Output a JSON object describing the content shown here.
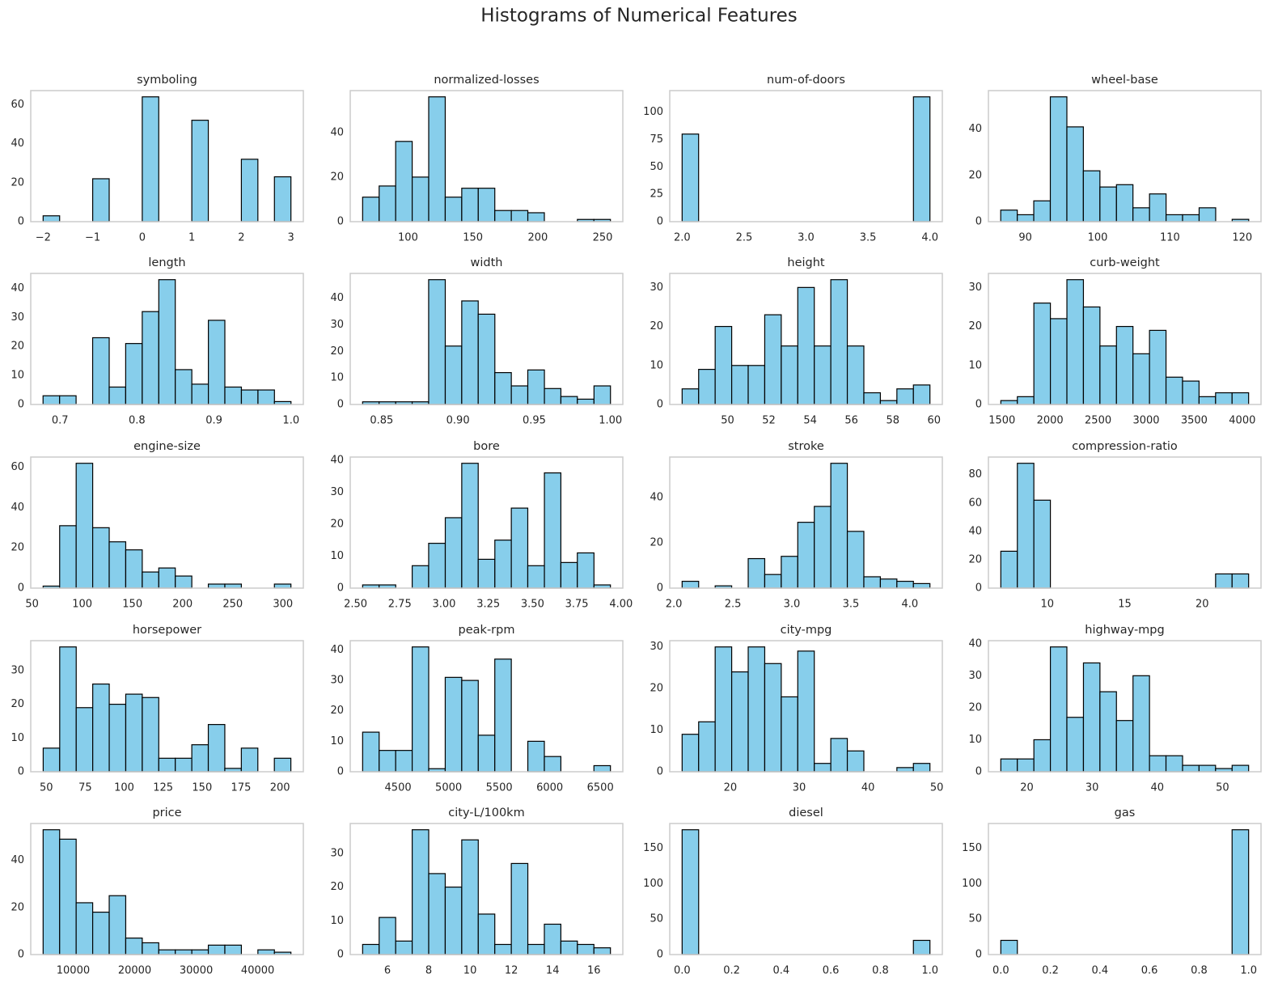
{
  "title": "Histograms of Numerical Features",
  "chart_data": [
    {
      "type": "histogram",
      "title": "symboling",
      "color": "#87ceeb",
      "edgecolor": "#000000",
      "bins": [
        -2,
        -1.667,
        -1.333,
        -1,
        -0.667,
        -0.333,
        0,
        0.333,
        0.667,
        1,
        1.333,
        1.667,
        2,
        2.333,
        2.667,
        3
      ],
      "values": [
        3,
        0,
        0,
        22,
        0,
        0,
        64,
        0,
        0,
        52,
        0,
        0,
        32,
        0,
        23
      ],
      "xlim": [
        -2.25,
        3.25
      ],
      "ylim": [
        0,
        67.2
      ],
      "xticks": [
        {
          "value": -2,
          "label": "−2"
        },
        {
          "value": -1,
          "label": "−1"
        },
        0,
        1,
        2,
        3
      ],
      "yticks": [
        0,
        20,
        40,
        60
      ]
    },
    {
      "type": "histogram",
      "title": "normalized-losses",
      "color": "#87ceeb",
      "edgecolor": "#000000",
      "bins": [
        65,
        77.73,
        90.47,
        103.2,
        115.93,
        128.67,
        141.4,
        154.13,
        166.87,
        179.6,
        192.33,
        205.07,
        217.8,
        230.53,
        243.27,
        256
      ],
      "values": [
        11,
        16,
        36,
        20,
        56,
        11,
        15,
        15,
        5,
        5,
        4,
        0,
        0,
        1,
        1
      ],
      "xlim": [
        55.45,
        265.55
      ],
      "ylim": [
        0,
        58.8
      ],
      "xticks": [
        100,
        150,
        200,
        250
      ],
      "yticks": [
        0,
        20,
        40
      ]
    },
    {
      "type": "histogram",
      "title": "num-of-doors",
      "color": "#87ceeb",
      "edgecolor": "#000000",
      "bins": [
        2,
        2.133,
        2.267,
        2.4,
        2.533,
        2.667,
        2.8,
        2.933,
        3.067,
        3.2,
        3.333,
        3.467,
        3.6,
        3.733,
        3.867,
        4
      ],
      "values": [
        80,
        0,
        0,
        0,
        0,
        0,
        0,
        0,
        0,
        0,
        0,
        0,
        0,
        0,
        114
      ],
      "xlim": [
        1.9,
        4.1
      ],
      "ylim": [
        0,
        119.7
      ],
      "xticks": [
        {
          "value": 2,
          "label": "2.0"
        },
        2.5,
        {
          "value": 3,
          "label": "3.0"
        },
        3.5,
        {
          "value": 4,
          "label": "4.0"
        }
      ],
      "yticks": [
        0,
        25,
        50,
        75,
        100
      ]
    },
    {
      "type": "histogram",
      "title": "wheel-base",
      "color": "#87ceeb",
      "edgecolor": "#000000",
      "bins": [
        86.6,
        88.89,
        91.17,
        93.46,
        95.75,
        98.03,
        100.32,
        102.61,
        104.89,
        107.18,
        109.47,
        111.75,
        114.04,
        116.33,
        118.61,
        120.9
      ],
      "values": [
        5,
        3,
        9,
        54,
        41,
        22,
        15,
        16,
        6,
        12,
        3,
        3,
        6,
        0,
        1
      ],
      "xlim": [
        84.9,
        122.6
      ],
      "ylim": [
        0,
        56.7
      ],
      "xticks": [
        90,
        100,
        110,
        120
      ],
      "yticks": [
        0,
        20,
        40
      ]
    },
    {
      "type": "histogram",
      "title": "length",
      "color": "#87ceeb",
      "edgecolor": "#000000",
      "bins": [
        0.678,
        0.6995,
        0.7209,
        0.7424,
        0.7639,
        0.7853,
        0.8068,
        0.8283,
        0.8497,
        0.8712,
        0.8927,
        0.9141,
        0.9356,
        0.9571,
        0.9785,
        1
      ],
      "values": [
        3,
        3,
        0,
        23,
        6,
        21,
        32,
        43,
        12,
        7,
        29,
        6,
        5,
        5,
        1
      ],
      "xlim": [
        0.662,
        1.016
      ],
      "ylim": [
        0,
        45.15
      ],
      "xticks": [
        0.7,
        0.8,
        0.9,
        {
          "value": 1,
          "label": "1.0"
        }
      ],
      "yticks": [
        0,
        10,
        20,
        30,
        40
      ]
    },
    {
      "type": "histogram",
      "title": "width",
      "color": "#87ceeb",
      "edgecolor": "#000000",
      "bins": [
        0.8375,
        0.8483,
        0.8592,
        0.87,
        0.8808,
        0.8917,
        0.9025,
        0.9133,
        0.9242,
        0.935,
        0.9458,
        0.9567,
        0.9675,
        0.9783,
        0.9892,
        1
      ],
      "values": [
        1,
        1,
        1,
        1,
        47,
        22,
        39,
        34,
        12,
        7,
        13,
        6,
        3,
        2,
        7
      ],
      "xlim": [
        0.8294,
        1.0081
      ],
      "ylim": [
        0,
        49.35
      ],
      "xticks": [
        0.85,
        {
          "value": 0.9,
          "label": "0.90"
        },
        0.95,
        {
          "value": 1,
          "label": "1.00"
        }
      ],
      "yticks": [
        0,
        10,
        20,
        30,
        40
      ]
    },
    {
      "type": "histogram",
      "title": "height",
      "color": "#87ceeb",
      "edgecolor": "#000000",
      "bins": [
        47.8,
        48.6,
        49.4,
        50.2,
        51,
        51.8,
        52.6,
        53.4,
        54.2,
        55,
        55.8,
        56.6,
        57.4,
        58.2,
        59,
        59.8
      ],
      "values": [
        4,
        9,
        20,
        10,
        10,
        23,
        15,
        30,
        15,
        32,
        15,
        3,
        1,
        4,
        5
      ],
      "xlim": [
        47.2,
        60.4
      ],
      "ylim": [
        0,
        33.6
      ],
      "xticks": [
        50,
        52,
        54,
        56,
        58,
        60
      ],
      "yticks": [
        0,
        10,
        20,
        30
      ]
    },
    {
      "type": "histogram",
      "title": "curb-weight",
      "color": "#87ceeb",
      "edgecolor": "#000000",
      "bins": [
        1488,
        1659.9,
        1831.7,
        2003.6,
        2175.5,
        2347.3,
        2519.2,
        2691.1,
        2862.9,
        3034.8,
        3206.7,
        3378.5,
        3550.4,
        3722.3,
        3894.1,
        4066
      ],
      "values": [
        1,
        2,
        26,
        22,
        32,
        25,
        15,
        20,
        13,
        19,
        7,
        6,
        2,
        3,
        3
      ],
      "xlim": [
        1359,
        4195
      ],
      "ylim": [
        0,
        33.6
      ],
      "xticks": [
        1500,
        2000,
        2500,
        3000,
        3500,
        4000
      ],
      "yticks": [
        0,
        10,
        20,
        30
      ]
    },
    {
      "type": "histogram",
      "title": "engine-size",
      "color": "#87ceeb",
      "edgecolor": "#000000",
      "bins": [
        61,
        77.47,
        93.93,
        110.4,
        126.87,
        143.33,
        159.8,
        176.27,
        192.73,
        209.2,
        225.67,
        242.13,
        258.6,
        275.07,
        291.53,
        308
      ],
      "values": [
        1,
        31,
        62,
        30,
        23,
        19,
        8,
        10,
        6,
        0,
        2,
        2,
        0,
        0,
        2
      ],
      "xlim": [
        48.65,
        320.35
      ],
      "ylim": [
        0,
        65.1
      ],
      "xticks": [
        50,
        100,
        150,
        200,
        250,
        300
      ],
      "yticks": [
        0,
        20,
        40,
        60
      ]
    },
    {
      "type": "histogram",
      "title": "bore",
      "color": "#87ceeb",
      "edgecolor": "#000000",
      "bins": [
        2.54,
        2.633,
        2.727,
        2.82,
        2.913,
        3.007,
        3.1,
        3.193,
        3.287,
        3.38,
        3.473,
        3.567,
        3.66,
        3.753,
        3.847,
        3.94
      ],
      "values": [
        1,
        1,
        0,
        7,
        14,
        22,
        39,
        9,
        15,
        25,
        7,
        36,
        8,
        11,
        1
      ],
      "xlim": [
        2.47,
        4.01
      ],
      "ylim": [
        0,
        40.95
      ],
      "xticks": [
        {
          "value": 2.5,
          "label": "2.50"
        },
        2.75,
        {
          "value": 3,
          "label": "3.00"
        },
        3.25,
        {
          "value": 3.5,
          "label": "3.50"
        },
        3.75,
        {
          "value": 4,
          "label": "4.00"
        }
      ],
      "yticks": [
        0,
        10,
        20,
        30,
        40
      ]
    },
    {
      "type": "histogram",
      "title": "stroke",
      "color": "#87ceeb",
      "edgecolor": "#000000",
      "bins": [
        2.07,
        2.21,
        2.35,
        2.49,
        2.63,
        2.77,
        2.91,
        3.05,
        3.19,
        3.33,
        3.47,
        3.61,
        3.75,
        3.89,
        4.03,
        4.17
      ],
      "values": [
        3,
        0,
        1,
        0,
        13,
        6,
        14,
        29,
        36,
        55,
        25,
        5,
        4,
        3,
        2
      ],
      "xlim": [
        1.965,
        4.275
      ],
      "ylim": [
        0,
        57.75
      ],
      "xticks": [
        {
          "value": 2,
          "label": "2.0"
        },
        2.5,
        {
          "value": 3,
          "label": "3.0"
        },
        3.5,
        {
          "value": 4,
          "label": "4.0"
        }
      ],
      "yticks": [
        0,
        20,
        40
      ]
    },
    {
      "type": "histogram",
      "title": "compression-ratio",
      "color": "#87ceeb",
      "edgecolor": "#000000",
      "bins": [
        7,
        8.067,
        9.133,
        10.2,
        11.267,
        12.333,
        13.4,
        14.467,
        15.533,
        16.6,
        17.667,
        18.733,
        19.8,
        20.867,
        21.933,
        23
      ],
      "values": [
        26,
        88,
        62,
        0,
        0,
        0,
        0,
        0,
        0,
        0,
        0,
        0,
        0,
        10,
        10
      ],
      "xlim": [
        6.2,
        23.8
      ],
      "ylim": [
        0,
        92.4
      ],
      "xticks": [
        10,
        15,
        20
      ],
      "yticks": [
        0,
        20,
        40,
        60,
        80
      ]
    },
    {
      "type": "histogram",
      "title": "horsepower",
      "color": "#87ceeb",
      "edgecolor": "#000000",
      "bins": [
        48,
        58.6,
        69.2,
        79.8,
        90.4,
        101,
        111.6,
        122.2,
        132.8,
        143.4,
        154,
        164.6,
        175.2,
        185.8,
        196.4,
        207
      ],
      "values": [
        7,
        37,
        19,
        26,
        20,
        23,
        22,
        4,
        4,
        8,
        14,
        1,
        7,
        0,
        4
      ],
      "xlim": [
        40,
        215
      ],
      "ylim": [
        0,
        38.85
      ],
      "xticks": [
        50,
        75,
        100,
        125,
        150,
        175,
        200
      ],
      "yticks": [
        0,
        10,
        20,
        30
      ]
    },
    {
      "type": "histogram",
      "title": "peak-rpm",
      "color": "#87ceeb",
      "edgecolor": "#000000",
      "bins": [
        4150,
        4313.3,
        4476.7,
        4640,
        4803.3,
        4966.7,
        5130,
        5293.3,
        5456.7,
        5620,
        5783.3,
        5946.7,
        6110,
        6273.3,
        6436.7,
        6600
      ],
      "values": [
        13,
        7,
        7,
        41,
        1,
        31,
        30,
        12,
        37,
        0,
        10,
        5,
        0,
        0,
        2
      ],
      "xlim": [
        4027.5,
        6722.5
      ],
      "ylim": [
        0,
        43.05
      ],
      "xticks": [
        4500,
        5000,
        5500,
        6000,
        6500
      ],
      "yticks": [
        0,
        10,
        20,
        30,
        40
      ]
    },
    {
      "type": "histogram",
      "title": "city-mpg",
      "color": "#87ceeb",
      "edgecolor": "#000000",
      "bins": [
        13,
        15.4,
        17.8,
        20.2,
        22.6,
        25,
        27.4,
        29.8,
        32.2,
        34.6,
        37,
        39.4,
        41.8,
        44.2,
        46.6,
        49
      ],
      "values": [
        9,
        12,
        30,
        24,
        30,
        26,
        18,
        29,
        2,
        8,
        5,
        0,
        0,
        1,
        2
      ],
      "xlim": [
        11.2,
        50.8
      ],
      "ylim": [
        0,
        31.5
      ],
      "xticks": [
        20,
        30,
        40,
        50
      ],
      "yticks": [
        0,
        10,
        20,
        30
      ]
    },
    {
      "type": "histogram",
      "title": "highway-mpg",
      "color": "#87ceeb",
      "edgecolor": "#000000",
      "bins": [
        16,
        18.53,
        21.07,
        23.6,
        26.13,
        28.67,
        31.2,
        33.73,
        36.27,
        38.8,
        41.33,
        43.87,
        46.4,
        48.93,
        51.47,
        54
      ],
      "values": [
        4,
        4,
        10,
        39,
        17,
        34,
        25,
        16,
        30,
        5,
        5,
        2,
        2,
        1,
        2
      ],
      "xlim": [
        14.1,
        55.9
      ],
      "ylim": [
        0,
        40.95
      ],
      "xticks": [
        20,
        30,
        40,
        50
      ],
      "yticks": [
        0,
        10,
        20,
        30,
        40
      ]
    },
    {
      "type": "histogram",
      "title": "price",
      "color": "#87ceeb",
      "edgecolor": "#000000",
      "bins": [
        5118,
        7803.5,
        10489,
        13174,
        15860,
        18545,
        21231,
        23916,
        26602,
        29287,
        31973,
        34658,
        37344,
        40029,
        42715,
        45400
      ],
      "values": [
        53,
        49,
        22,
        18,
        25,
        7,
        5,
        2,
        2,
        2,
        4,
        4,
        0,
        2,
        1
      ],
      "xlim": [
        3104,
        47414
      ],
      "ylim": [
        0,
        55.65
      ],
      "xticks": [
        10000,
        20000,
        30000,
        40000
      ],
      "yticks": [
        0,
        20,
        40
      ]
    },
    {
      "type": "histogram",
      "title": "city-L/100km",
      "color": "#87ceeb",
      "edgecolor": "#000000",
      "bins": [
        4.8,
        5.6,
        6.4,
        7.2,
        8,
        8.8,
        9.6,
        10.4,
        11.2,
        12,
        12.8,
        13.6,
        14.4,
        15.2,
        16,
        16.8
      ],
      "values": [
        3,
        11,
        4,
        37,
        24,
        20,
        34,
        12,
        3,
        27,
        3,
        9,
        4,
        3,
        2
      ],
      "xlim": [
        4.2,
        17.4
      ],
      "ylim": [
        0,
        38.85
      ],
      "xticks": [
        6,
        8,
        10,
        12,
        14,
        16
      ],
      "yticks": [
        0,
        10,
        20,
        30
      ]
    },
    {
      "type": "histogram",
      "title": "diesel",
      "color": "#87ceeb",
      "edgecolor": "#000000",
      "bins": [
        0,
        0.0667,
        0.1333,
        0.2,
        0.2667,
        0.3333,
        0.4,
        0.4667,
        0.5333,
        0.6,
        0.6667,
        0.7333,
        0.8,
        0.8667,
        0.9333,
        1
      ],
      "values": [
        176,
        0,
        0,
        0,
        0,
        0,
        0,
        0,
        0,
        0,
        0,
        0,
        0,
        0,
        20
      ],
      "xlim": [
        -0.05,
        1.05
      ],
      "ylim": [
        0,
        184.8
      ],
      "xticks": [
        {
          "value": 0,
          "label": "0.0"
        },
        0.2,
        0.4,
        0.6,
        0.8,
        {
          "value": 1,
          "label": "1.0"
        }
      ],
      "yticks": [
        0,
        50,
        100,
        150
      ]
    },
    {
      "type": "histogram",
      "title": "gas",
      "color": "#87ceeb",
      "edgecolor": "#000000",
      "bins": [
        0,
        0.0667,
        0.1333,
        0.2,
        0.2667,
        0.3333,
        0.4,
        0.4667,
        0.5333,
        0.6,
        0.6667,
        0.7333,
        0.8,
        0.8667,
        0.9333,
        1
      ],
      "values": [
        20,
        0,
        0,
        0,
        0,
        0,
        0,
        0,
        0,
        0,
        0,
        0,
        0,
        0,
        176
      ],
      "xlim": [
        -0.05,
        1.05
      ],
      "ylim": [
        0,
        184.8
      ],
      "xticks": [
        {
          "value": 0,
          "label": "0.0"
        },
        0.2,
        0.4,
        0.6,
        0.8,
        {
          "value": 1,
          "label": "1.0"
        }
      ],
      "yticks": [
        0,
        50,
        100,
        150
      ]
    }
  ]
}
